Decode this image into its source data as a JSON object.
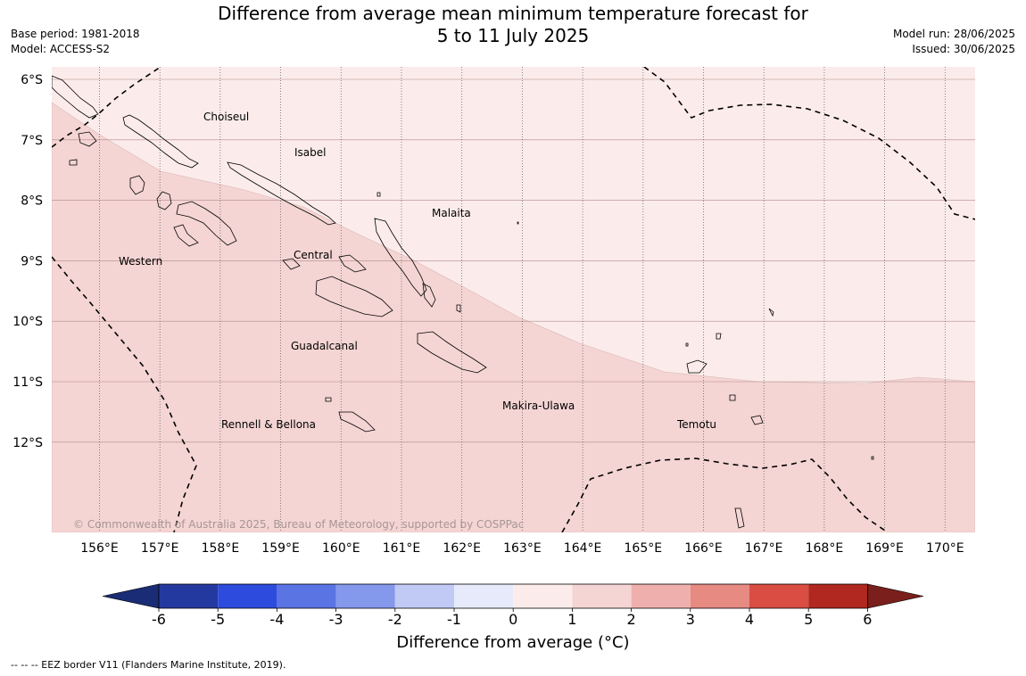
{
  "title": {
    "line1": "Difference from average mean minimum temperature forecast for",
    "line2": "5 to 11 July 2025"
  },
  "meta_left": {
    "base_period": "Base period: 1981-2018",
    "model": "Model: ACCESS-S2"
  },
  "meta_right": {
    "model_run": "Model run: 28/06/2025",
    "issued": "Issued: 30/06/2025"
  },
  "map": {
    "lat_labels": [
      "6°S",
      "7°S",
      "8°S",
      "9°S",
      "10°S",
      "11°S",
      "12°S"
    ],
    "lon_labels": [
      "156°E",
      "157°E",
      "158°E",
      "159°E",
      "160°E",
      "161°E",
      "162°E",
      "163°E",
      "164°E",
      "165°E",
      "166°E",
      "167°E",
      "168°E",
      "169°E",
      "170°E"
    ],
    "regions": [
      "Choiseul",
      "Isabel",
      "Malaita",
      "Western",
      "Central",
      "Guadalcanal",
      "Makira-Ulawa",
      "Rennell & Bellona",
      "Temotu"
    ],
    "copyright": "© Commonwealth of Australia 2025, Bureau of Meteorology, supported by COSPPac",
    "fill_colors": {
      "anomaly_0_to_1": "#fbeceb",
      "anomaly_1_to_2": "#f4d5d4"
    }
  },
  "colorbar": {
    "ticks": [
      "-6",
      "-5",
      "-4",
      "-3",
      "-2",
      "-1",
      "0",
      "1",
      "2",
      "3",
      "4",
      "5",
      "6"
    ],
    "colors": [
      "#24399f",
      "#2d4bdc",
      "#5b74e4",
      "#8498ec",
      "#c1c9f5",
      "#e6eafb",
      "#fbeceb",
      "#f4d5d4",
      "#efb0ad",
      "#e68a82",
      "#da4d43",
      "#b0281f"
    ],
    "low_extend_color": "#1a2c75",
    "high_extend_color": "#7a1f1b",
    "label": "Difference from average (°C)"
  },
  "footnote": "-- -- -- EEZ border V11 (Flanders Marine Institute, 2019)."
}
